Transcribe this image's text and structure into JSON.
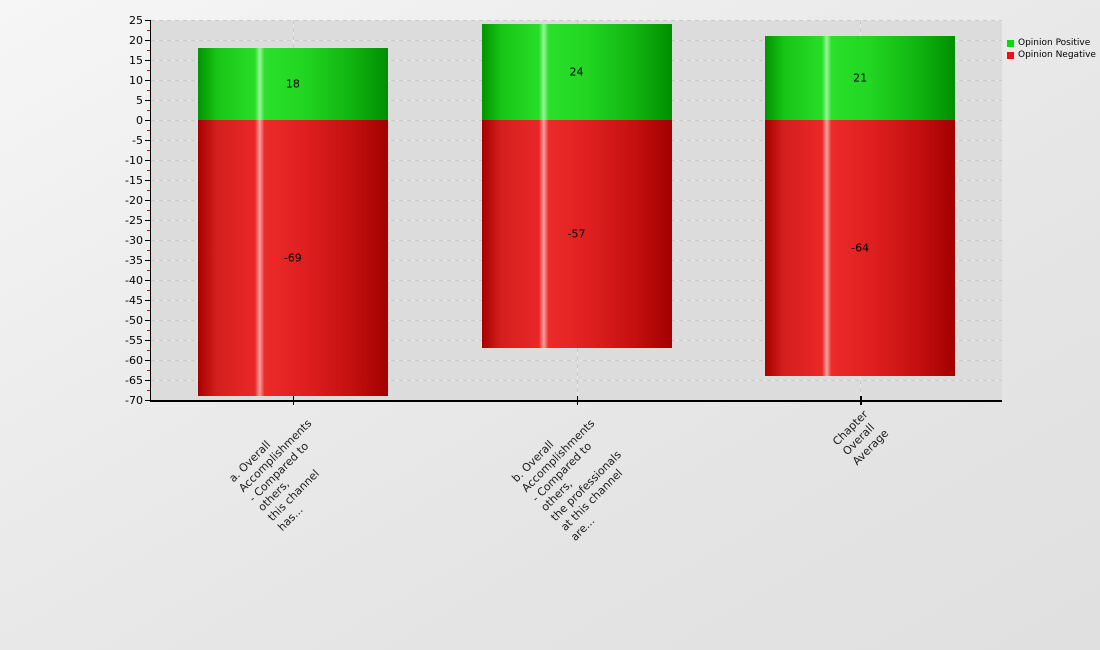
{
  "chart_data": {
    "type": "bar",
    "stacked": true,
    "title": "",
    "xlabel": "",
    "ylabel": "",
    "categories": [
      "a. Overall Accomplishments - Compared to others,\nthis channel has...",
      "b. Overall Accomplishments - Compared to others,\nthe professionals at this channel are...",
      "Chapter Overall Average"
    ],
    "series": [
      {
        "name": "Opinion Positive",
        "color": "#00cc00",
        "legend_color": "#00dd00",
        "values": [
          18,
          24,
          21
        ]
      },
      {
        "name": "Opinion Negative",
        "color": "#dd0000",
        "legend_color": "#ee1111",
        "values": [
          -69,
          -57,
          -64
        ]
      }
    ],
    "value_labels": {
      "positive": [
        "18",
        "24",
        "21"
      ],
      "negative": [
        "-69",
        "-57",
        "-64"
      ]
    },
    "ylim": [
      -70,
      25
    ],
    "ytick_step": 5,
    "yminor_step": 2.5,
    "ytick_labels": [
      "25",
      "20",
      "15",
      "10",
      "5",
      "0",
      "-5",
      "-10",
      "-15",
      "-20",
      "-25",
      "-30",
      "-35",
      "-40",
      "-45",
      "-50",
      "-55",
      "-60",
      "-65",
      "-70"
    ],
    "grid": true,
    "grid_style": "dashed",
    "legend_position": "top-right",
    "minor_tick_color": "#cc0000",
    "plot_background": "#dcdcdc"
  }
}
